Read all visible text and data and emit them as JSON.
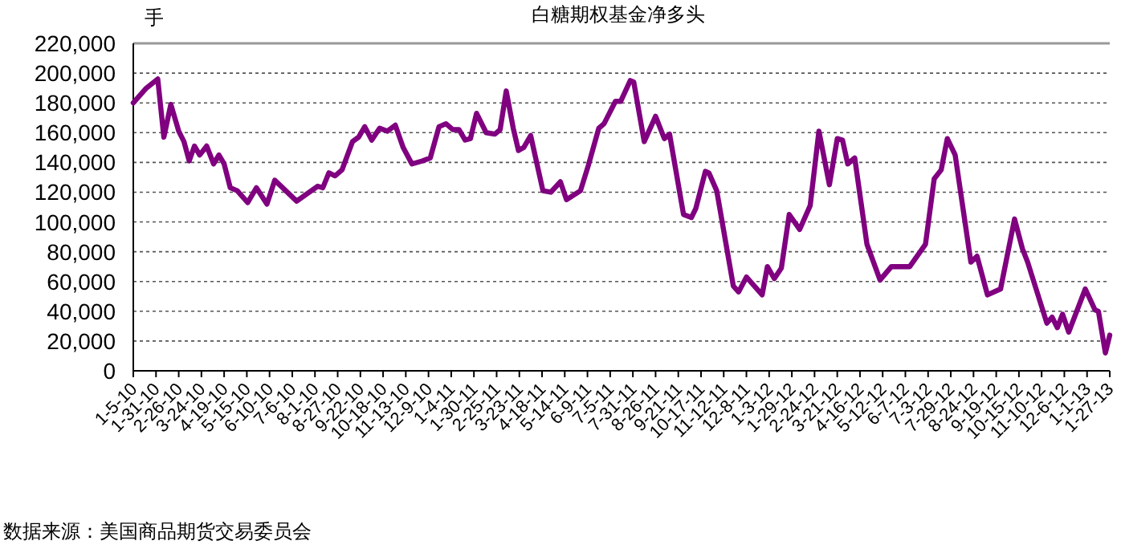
{
  "chart_data": {
    "type": "line",
    "title": "白糖期权基金净多头",
    "ylabel": "手",
    "annotations": [
      "数据来源：美国商品期货交易委员会"
    ],
    "x": [
      "2010-01-05",
      "2010-01-20",
      "2010-02-02",
      "2010-02-09",
      "2010-02-17",
      "2010-02-26",
      "2010-03-04",
      "2010-03-10",
      "2010-03-16",
      "2010-03-22",
      "2010-03-30",
      "2010-04-07",
      "2010-04-13",
      "2010-04-19",
      "2010-04-26",
      "2010-05-04",
      "2010-05-16",
      "2010-05-26",
      "2010-06-07",
      "2010-06-16",
      "2010-06-25",
      "2010-07-11",
      "2010-08-04",
      "2010-08-10",
      "2010-08-17",
      "2010-08-24",
      "2010-09-01",
      "2010-09-13",
      "2010-09-20",
      "2010-09-27",
      "2010-10-05",
      "2010-10-14",
      "2010-10-23",
      "2010-11-01",
      "2010-11-10",
      "2010-11-20",
      "2010-12-02",
      "2010-12-11",
      "2010-12-21",
      "2010-12-29",
      "2011-01-06",
      "2011-01-13",
      "2011-01-20",
      "2011-01-26",
      "2011-02-02",
      "2011-02-13",
      "2011-02-23",
      "2011-03-01",
      "2011-03-08",
      "2011-03-16",
      "2011-03-22",
      "2011-03-28",
      "2011-04-05",
      "2011-04-19",
      "2011-04-28",
      "2011-05-09",
      "2011-05-16",
      "2011-06-01",
      "2011-06-10",
      "2011-06-22",
      "2011-06-28",
      "2011-07-11",
      "2011-07-17",
      "2011-07-28",
      "2011-08-01",
      "2011-08-13",
      "2011-08-26",
      "2011-09-05",
      "2011-09-11",
      "2011-09-27",
      "2011-10-06",
      "2011-10-11",
      "2011-10-22",
      "2011-10-26",
      "2011-11-04",
      "2011-11-23",
      "2011-11-29",
      "2011-12-08",
      "2011-12-26",
      "2012-01-01",
      "2012-01-09",
      "2012-01-17",
      "2012-01-26",
      "2012-02-07",
      "2012-02-19",
      "2012-02-29",
      "2012-03-12",
      "2012-03-21",
      "2012-03-27",
      "2012-04-02",
      "2012-04-10",
      "2012-04-24",
      "2012-05-09",
      "2012-05-22",
      "2012-06-03",
      "2012-06-12",
      "2012-06-30",
      "2012-07-10",
      "2012-07-18",
      "2012-07-25",
      "2012-08-03",
      "2012-08-21",
      "2012-08-28",
      "2012-09-09",
      "2012-09-24",
      "2012-10-10",
      "2012-10-19",
      "2012-10-25",
      "2012-11-16",
      "2012-11-22",
      "2012-11-28",
      "2012-12-04",
      "2012-12-11",
      "2012-12-30",
      "2013-01-10",
      "2013-01-14",
      "2013-01-22",
      "2013-01-27"
    ],
    "series": [
      {
        "color": "#800080",
        "values": [
          180000,
          190000,
          196000,
          157000,
          179000,
          161000,
          154000,
          141000,
          151000,
          145000,
          151000,
          139000,
          145000,
          139000,
          123000,
          121000,
          113000,
          123000,
          112000,
          128000,
          123000,
          114000,
          124000,
          123000,
          133000,
          131000,
          135000,
          154000,
          157000,
          164000,
          155000,
          163000,
          161000,
          165000,
          150000,
          139000,
          141000,
          143000,
          164000,
          166000,
          162000,
          162000,
          155000,
          156000,
          173000,
          160000,
          159000,
          162000,
          188000,
          163000,
          148000,
          150000,
          158000,
          121000,
          120000,
          127000,
          115000,
          121000,
          138000,
          163000,
          166000,
          181000,
          181000,
          195000,
          194000,
          154000,
          171000,
          156000,
          159000,
          105000,
          103000,
          109000,
          134000,
          133000,
          121000,
          57000,
          53000,
          63000,
          51000,
          70000,
          62000,
          69000,
          105000,
          95000,
          111000,
          161000,
          125000,
          156000,
          155000,
          139000,
          143000,
          85000,
          61000,
          70000,
          70000,
          70000,
          85000,
          129000,
          135000,
          156000,
          145000,
          73000,
          77000,
          51000,
          55000,
          102000,
          82000,
          73000,
          32000,
          36000,
          29000,
          38000,
          26000,
          55000,
          41000,
          40000,
          12000,
          24000
        ]
      }
    ],
    "xlim": [
      "2010-01-05",
      "2013-01-27"
    ],
    "xticks": [
      {
        "value": "2010-01-05",
        "label": "1-5-10"
      },
      {
        "value": "2010-01-31",
        "label": "1-31-10"
      },
      {
        "value": "2010-02-26",
        "label": "2-26-10"
      },
      {
        "value": "2010-03-24",
        "label": "3-24-10"
      },
      {
        "value": "2010-04-19",
        "label": "4-19-10"
      },
      {
        "value": "2010-05-15",
        "label": "5-15-10"
      },
      {
        "value": "2010-06-10",
        "label": "6-10-10"
      },
      {
        "value": "2010-07-06",
        "label": "7-6-10"
      },
      {
        "value": "2010-08-01",
        "label": "8-1-10"
      },
      {
        "value": "2010-08-27",
        "label": "8-27-10"
      },
      {
        "value": "2010-09-22",
        "label": "9-22-10"
      },
      {
        "value": "2010-10-18",
        "label": "10-18-10"
      },
      {
        "value": "2010-11-13",
        "label": "11-13-10"
      },
      {
        "value": "2010-12-09",
        "label": "12-9-10"
      },
      {
        "value": "2011-01-04",
        "label": "1-4-11"
      },
      {
        "value": "2011-01-30",
        "label": "1-30-11"
      },
      {
        "value": "2011-02-25",
        "label": "2-25-11"
      },
      {
        "value": "2011-03-23",
        "label": "3-23-11"
      },
      {
        "value": "2011-04-18",
        "label": "4-18-11"
      },
      {
        "value": "2011-05-14",
        "label": "5-14-11"
      },
      {
        "value": "2011-06-09",
        "label": "6-9-11"
      },
      {
        "value": "2011-07-05",
        "label": "7-5-11"
      },
      {
        "value": "2011-07-31",
        "label": "7-31-11"
      },
      {
        "value": "2011-08-26",
        "label": "8-26-11"
      },
      {
        "value": "2011-09-21",
        "label": "9-21-11"
      },
      {
        "value": "2011-10-17",
        "label": "10-17-11"
      },
      {
        "value": "2011-11-12",
        "label": "11-12-11"
      },
      {
        "value": "2011-12-08",
        "label": "12-8-11"
      },
      {
        "value": "2012-01-03",
        "label": "1-3-12"
      },
      {
        "value": "2012-01-29",
        "label": "1-29-12"
      },
      {
        "value": "2012-02-24",
        "label": "2-24-12"
      },
      {
        "value": "2012-03-21",
        "label": "3-21-12"
      },
      {
        "value": "2012-04-16",
        "label": "4-16-12"
      },
      {
        "value": "2012-05-12",
        "label": "5-12-12"
      },
      {
        "value": "2012-06-07",
        "label": "6-7-12"
      },
      {
        "value": "2012-07-03",
        "label": "7-3-12"
      },
      {
        "value": "2012-07-29",
        "label": "7-29-12"
      },
      {
        "value": "2012-08-24",
        "label": "8-24-12"
      },
      {
        "value": "2012-09-19",
        "label": "9-19-12"
      },
      {
        "value": "2012-10-15",
        "label": "10-15-12"
      },
      {
        "value": "2012-11-10",
        "label": "11-10-12"
      },
      {
        "value": "2012-12-06",
        "label": "12-6-12"
      },
      {
        "value": "2013-01-01",
        "label": "1-1-13"
      },
      {
        "value": "2013-01-27",
        "label": "1-27-13"
      }
    ],
    "ylim": [
      0,
      220000
    ],
    "yticks": [
      {
        "value": 0,
        "label": "0"
      },
      {
        "value": 20000,
        "label": "20,000"
      },
      {
        "value": 40000,
        "label": "40,000"
      },
      {
        "value": 60000,
        "label": "60,000"
      },
      {
        "value": 80000,
        "label": "80,000"
      },
      {
        "value": 100000,
        "label": "100,000"
      },
      {
        "value": 120000,
        "label": "120,000"
      },
      {
        "value": 140000,
        "label": "140,000"
      },
      {
        "value": 160000,
        "label": "160,000"
      },
      {
        "value": 180000,
        "label": "180,000"
      },
      {
        "value": 200000,
        "label": "200,000"
      },
      {
        "value": 220000,
        "label": "220,000"
      }
    ],
    "grid": "y"
  }
}
